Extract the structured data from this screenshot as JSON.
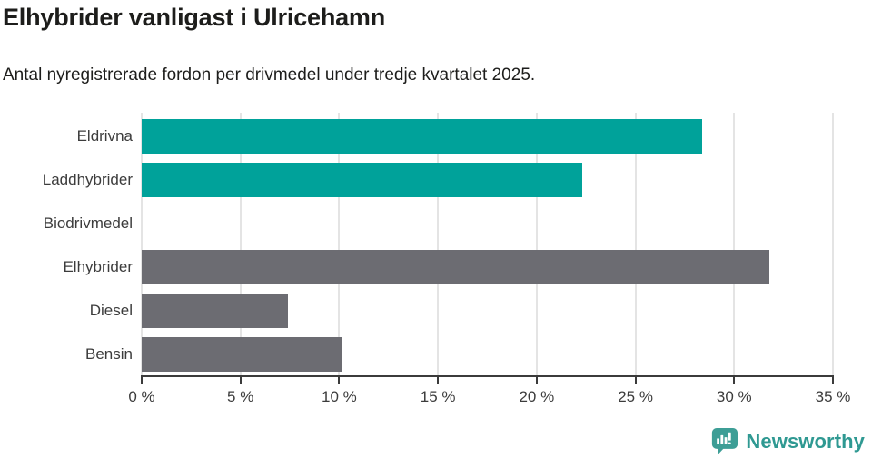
{
  "header": {
    "title": "Elhybrider vanligast i Ulricehamn",
    "subtitle": "Antal nyregistrerade fordon per drivmedel under tredje kvartalet 2025."
  },
  "chart_data": {
    "type": "bar",
    "orientation": "horizontal",
    "title": "Elhybrider vanligast i Ulricehamn",
    "subtitle": "Antal nyregistrerade fordon per drivmedel under tredje kvartalet 2025.",
    "categories": [
      "Eldrivna",
      "Laddhybrider",
      "Biodrivmedel",
      "Elhybrider",
      "Diesel",
      "Bensin"
    ],
    "values": [
      28.4,
      22.3,
      0,
      31.8,
      7.4,
      10.1
    ],
    "bar_colors": [
      "#00a29a",
      "#00a29a",
      "#6c6c72",
      "#6c6c72",
      "#6c6c72",
      "#6c6c72"
    ],
    "unit": "%",
    "x_axis": {
      "min": 0,
      "max": 35,
      "tick_step": 5,
      "tick_labels": [
        "0 %",
        "5 %",
        "10 %",
        "15 %",
        "20 %",
        "25 %",
        "30 %",
        "35 %"
      ]
    },
    "grid": "vertical",
    "legend": "none"
  },
  "branding": {
    "logo_text": "Newsworthy"
  },
  "colors": {
    "teal_bar": "#00a29a",
    "gray_bar": "#6c6c72",
    "axis": "#3b3b3b",
    "gridline": "#e4e4e4",
    "text": "#1d1d1b",
    "label_text": "#3c3c3c",
    "logo_icon": "#3d9e96",
    "logo_text": "#2f9992"
  }
}
